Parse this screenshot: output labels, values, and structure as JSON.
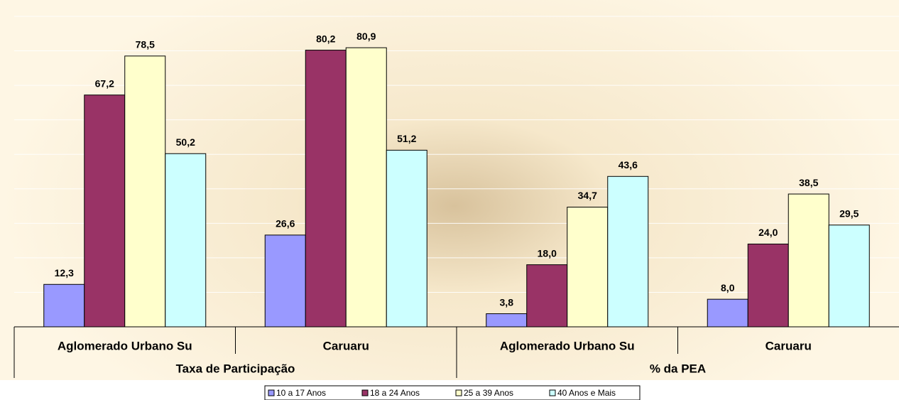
{
  "chart_data": {
    "type": "bar",
    "categories": [
      "Aglomerado Urbano Su",
      "Caruaru",
      "Aglomerado Urbano Su",
      "Caruaru"
    ],
    "groups": [
      {
        "label": "Taxa de Participação",
        "span": 2
      },
      {
        "label": "% da PEA",
        "span": 2
      }
    ],
    "series": [
      {
        "name": "10 a 17 Anos",
        "color": "#9999FF",
        "values": [
          12.3,
          26.6,
          3.8,
          8.0
        ],
        "value_labels": [
          "12,3",
          "26,6",
          "3,8",
          "8,0"
        ]
      },
      {
        "name": "18 a 24 Anos",
        "color": "#993366",
        "values": [
          67.2,
          80.2,
          18.0,
          24.0
        ],
        "value_labels": [
          "67,2",
          "80,2",
          "18,0",
          "24,0"
        ]
      },
      {
        "name": "25 a 39 Anos",
        "color": "#FFFFCC",
        "values": [
          78.5,
          80.9,
          34.7,
          38.5
        ],
        "value_labels": [
          "78,5",
          "80,9",
          "34,7",
          "38,5"
        ]
      },
      {
        "name": "40 Anos e Mais",
        "color": "#CCFFFF",
        "values": [
          50.2,
          51.2,
          43.6,
          29.5
        ],
        "value_labels": [
          "50,2",
          "51,2",
          "43,6",
          "29,5"
        ]
      }
    ],
    "ylim": [
      0,
      90
    ],
    "yticks": [
      0,
      10,
      20,
      30,
      40,
      50,
      60,
      70,
      80,
      90
    ],
    "grid": true,
    "legend": "bottom"
  }
}
